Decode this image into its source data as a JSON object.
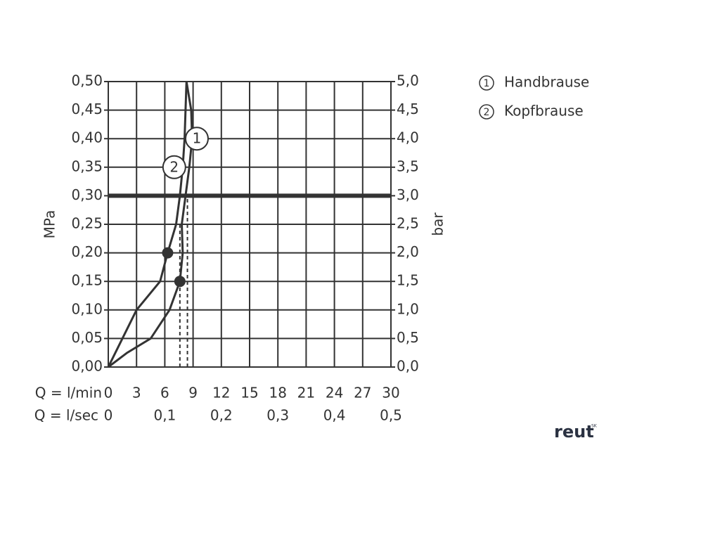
{
  "chart_data": {
    "type": "line",
    "ylabel": "MPa",
    "y2label": "bar",
    "xlabel": "Q = l/min",
    "x2label": "Q = l/sec",
    "xlim": [
      0,
      30
    ],
    "xticks": [
      0,
      3,
      6,
      9,
      12,
      15,
      18,
      21,
      24,
      27,
      30
    ],
    "x2lim": [
      0,
      0.5
    ],
    "x2ticks": [
      0,
      {
        "value": 0.1,
        "label": "0,1"
      },
      {
        "value": 0.2,
        "label": "0,2"
      },
      {
        "value": 0.3,
        "label": "0,3"
      },
      {
        "value": 0.4,
        "label": "0,4"
      },
      {
        "value": 0.5,
        "label": "0,5"
      }
    ],
    "ylim": [
      0,
      0.5
    ],
    "yticks": [
      {
        "value": 0,
        "label": "0,00"
      },
      {
        "value": 0.05,
        "label": "0,05"
      },
      {
        "value": 0.1,
        "label": "0,10"
      },
      {
        "value": 0.15,
        "label": "0,15"
      },
      {
        "value": 0.2,
        "label": "0,20"
      },
      {
        "value": 0.25,
        "label": "0,25"
      },
      {
        "value": 0.3,
        "label": "0,30"
      },
      {
        "value": 0.35,
        "label": "0,35"
      },
      {
        "value": 0.4,
        "label": "0,40"
      },
      {
        "value": 0.45,
        "label": "0,45"
      },
      {
        "value": 0.5,
        "label": "0,50"
      }
    ],
    "y2lim": [
      0,
      5
    ],
    "y2ticks": [
      {
        "value": 0,
        "label": "0,0"
      },
      {
        "value": 0.5,
        "label": "0,5"
      },
      {
        "value": 1,
        "label": "1,0"
      },
      {
        "value": 1.5,
        "label": "1,5"
      },
      {
        "value": 2,
        "label": "2,0"
      },
      {
        "value": 2.5,
        "label": "2,5"
      },
      {
        "value": 3,
        "label": "3,0"
      },
      {
        "value": 3.5,
        "label": "3,5"
      },
      {
        "value": 4,
        "label": "4,0"
      },
      {
        "value": 4.5,
        "label": "4,5"
      },
      {
        "value": 5,
        "label": "5,0"
      }
    ],
    "grid": true,
    "color": "#333333",
    "reference_line": 0.3,
    "series": [
      {
        "name": "Handbrause",
        "marker_label": "1",
        "x": [
          0,
          2,
          4.5,
          6.5,
          7.6,
          7.9,
          7.8,
          8.2,
          8.6,
          8.9,
          8.8,
          8.3
        ],
        "values": [
          0,
          0.025,
          0.05,
          0.1,
          0.15,
          0.2,
          0.25,
          0.3,
          0.35,
          0.4,
          0.45,
          0.5
        ],
        "label_at": [
          9.4,
          0.4
        ]
      },
      {
        "name": "Kopfbrause",
        "marker_label": "2",
        "x": [
          0,
          3,
          5.5,
          6.3,
          7.2,
          7.6,
          7.9,
          8.1,
          8.3
        ],
        "values": [
          0,
          0.1,
          0.15,
          0.2,
          0.25,
          0.3,
          0.35,
          0.4,
          0.5
        ],
        "label_at": [
          7,
          0.35
        ]
      }
    ],
    "markers": [
      {
        "x": 6.3,
        "y": 0.2
      },
      {
        "x": 7.6,
        "y": 0.15
      }
    ],
    "dashed_lines": [
      {
        "x": 7.6,
        "y": 0.25
      },
      {
        "x": 8.4,
        "y": 0.3
      }
    ]
  },
  "logo": {
    "text": "reut",
    "sup": "SK"
  }
}
